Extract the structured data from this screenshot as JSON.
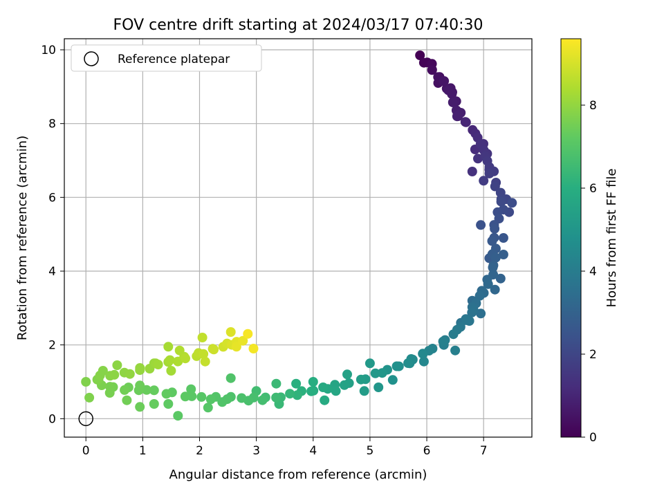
{
  "chart_data": {
    "type": "scatter",
    "title": "FOV centre drift starting at 2024/03/17 07:40:30",
    "xlabel": "Angular distance from reference (arcmin)",
    "ylabel": "Rotation from reference (arcmin)",
    "xlim": [
      -0.38,
      7.85
    ],
    "ylim": [
      -0.5,
      10.3
    ],
    "xticks": [
      0,
      1,
      2,
      3,
      4,
      5,
      6,
      7
    ],
    "yticks": [
      0,
      2,
      4,
      6,
      8,
      10
    ],
    "grid": true,
    "legend": {
      "placement": "top-left",
      "entries": [
        "Reference platepar"
      ]
    },
    "reference_point": {
      "x": 0,
      "y": 0
    },
    "colorbar": {
      "label": "Hours from first FF file",
      "range": [
        0,
        9.6
      ],
      "ticks": [
        0,
        2,
        4,
        6,
        8
      ],
      "colormap": "viridis"
    },
    "path": [
      [
        5.88,
        9.8,
        0.0
      ],
      [
        6.05,
        9.6,
        0.2
      ],
      [
        6.18,
        9.3,
        0.35
      ],
      [
        6.3,
        9.2,
        0.5
      ],
      [
        6.42,
        8.9,
        0.65
      ],
      [
        6.58,
        8.15,
        0.85
      ],
      [
        6.7,
        8.0,
        1.0
      ],
      [
        6.82,
        7.75,
        1.15
      ],
      [
        6.95,
        7.5,
        1.3
      ],
      [
        7.05,
        7.2,
        1.45
      ],
      [
        7.1,
        6.95,
        1.6
      ],
      [
        7.15,
        6.6,
        1.75
      ],
      [
        7.22,
        6.3,
        1.9
      ],
      [
        7.28,
        6.0,
        2.05
      ],
      [
        7.3,
        5.7,
        2.2
      ],
      [
        7.25,
        5.4,
        2.35
      ],
      [
        7.22,
        5.1,
        2.5
      ],
      [
        7.2,
        4.8,
        2.65
      ],
      [
        7.18,
        4.5,
        2.8
      ],
      [
        7.15,
        4.2,
        2.95
      ],
      [
        7.12,
        3.9,
        3.1
      ],
      [
        7.05,
        3.6,
        3.25
      ],
      [
        6.95,
        3.3,
        3.4
      ],
      [
        6.85,
        3.05,
        3.55
      ],
      [
        6.72,
        2.75,
        3.7
      ],
      [
        6.58,
        2.5,
        3.85
      ],
      [
        6.42,
        2.25,
        4.0
      ],
      [
        6.25,
        2.05,
        4.15
      ],
      [
        6.05,
        1.85,
        4.3
      ],
      [
        5.8,
        1.65,
        4.5
      ],
      [
        5.55,
        1.45,
        4.7
      ],
      [
        5.3,
        1.3,
        4.9
      ],
      [
        5.05,
        1.18,
        5.1
      ],
      [
        4.8,
        1.05,
        5.3
      ],
      [
        4.55,
        0.95,
        5.5
      ],
      [
        4.3,
        0.85,
        5.7
      ],
      [
        4.05,
        0.75,
        5.9
      ],
      [
        3.8,
        0.7,
        6.1
      ],
      [
        3.55,
        0.65,
        6.3
      ],
      [
        3.3,
        0.6,
        6.5
      ],
      [
        3.1,
        0.55,
        6.65
      ],
      [
        2.9,
        0.5,
        6.75
      ],
      [
        2.6,
        0.55,
        6.85
      ],
      [
        2.3,
        0.55,
        6.95
      ],
      [
        2.0,
        0.6,
        7.05
      ],
      [
        1.7,
        0.65,
        7.15
      ],
      [
        1.4,
        0.7,
        7.25
      ],
      [
        1.1,
        0.75,
        7.35
      ],
      [
        0.8,
        0.8,
        7.45
      ],
      [
        0.5,
        0.85,
        7.55
      ],
      [
        0.25,
        0.95,
        7.65
      ],
      [
        0.15,
        1.1,
        7.75
      ],
      [
        0.4,
        1.15,
        7.85
      ],
      [
        0.7,
        1.2,
        7.95
      ],
      [
        1.0,
        1.35,
        8.05
      ],
      [
        1.3,
        1.5,
        8.2
      ],
      [
        1.6,
        1.6,
        8.4
      ],
      [
        1.9,
        1.7,
        8.6
      ],
      [
        2.2,
        1.85,
        8.8
      ],
      [
        2.5,
        2.0,
        9.0
      ],
      [
        2.7,
        2.1,
        9.2
      ],
      [
        2.8,
        2.15,
        9.4
      ]
    ],
    "outliers": [
      [
        5.95,
        9.65,
        0.1
      ],
      [
        6.2,
        9.1,
        0.4
      ],
      [
        6.35,
        8.95,
        0.55
      ],
      [
        6.45,
        8.85,
        0.6
      ],
      [
        6.55,
        8.2,
        0.8
      ],
      [
        6.85,
        7.3,
        1.2
      ],
      [
        6.8,
        6.7,
        1.35
      ],
      [
        6.9,
        7.05,
        1.4
      ],
      [
        7.1,
        6.75,
        1.55
      ],
      [
        7.0,
        6.45,
        1.7
      ],
      [
        7.4,
        5.95,
        2.0
      ],
      [
        7.45,
        5.6,
        2.15
      ],
      [
        7.5,
        5.85,
        2.25
      ],
      [
        6.95,
        5.25,
        2.4
      ],
      [
        7.35,
        4.9,
        2.55
      ],
      [
        7.1,
        4.35,
        2.7
      ],
      [
        7.35,
        4.45,
        2.9
      ],
      [
        7.3,
        3.8,
        3.05
      ],
      [
        7.2,
        3.5,
        3.2
      ],
      [
        6.8,
        3.2,
        3.35
      ],
      [
        6.95,
        2.85,
        3.5
      ],
      [
        6.6,
        2.6,
        3.65
      ],
      [
        6.75,
        2.65,
        3.75
      ],
      [
        6.3,
        2.0,
        4.05
      ],
      [
        6.5,
        1.85,
        4.1
      ],
      [
        5.95,
        1.55,
        4.4
      ],
      [
        5.7,
        1.5,
        4.55
      ],
      [
        5.4,
        1.05,
        4.8
      ],
      [
        5.15,
        0.85,
        5.0
      ],
      [
        5.0,
        1.5,
        5.15
      ],
      [
        4.9,
        0.75,
        5.25
      ],
      [
        4.6,
        1.2,
        5.45
      ],
      [
        4.4,
        0.75,
        5.65
      ],
      [
        4.2,
        0.5,
        5.85
      ],
      [
        4.0,
        1.0,
        5.95
      ],
      [
        3.7,
        0.95,
        6.05
      ],
      [
        3.4,
        0.4,
        6.4
      ],
      [
        3.35,
        0.95,
        6.45
      ],
      [
        3.0,
        0.75,
        6.6
      ],
      [
        2.55,
        1.1,
        6.9
      ],
      [
        2.4,
        0.45,
        6.92
      ],
      [
        2.15,
        0.3,
        7.0
      ],
      [
        1.85,
        0.8,
        7.1
      ],
      [
        1.62,
        0.08,
        7.12
      ],
      [
        1.45,
        0.4,
        7.2
      ],
      [
        1.2,
        0.4,
        7.3
      ],
      [
        0.95,
        0.32,
        7.4
      ],
      [
        0.72,
        0.5,
        7.5
      ],
      [
        0.95,
        0.9,
        7.42
      ],
      [
        0.42,
        0.7,
        7.6
      ],
      [
        0.06,
        0.57,
        7.7
      ],
      [
        0.0,
        1.0,
        7.72
      ],
      [
        0.3,
        1.3,
        7.8
      ],
      [
        0.55,
        1.45,
        7.9
      ],
      [
        1.2,
        1.5,
        8.1
      ],
      [
        1.45,
        1.95,
        8.3
      ],
      [
        1.5,
        1.3,
        8.25
      ],
      [
        1.65,
        1.85,
        8.45
      ],
      [
        2.05,
        2.2,
        8.7
      ],
      [
        2.1,
        1.55,
        8.75
      ],
      [
        2.55,
        2.35,
        9.1
      ],
      [
        2.65,
        1.95,
        9.25
      ],
      [
        2.95,
        1.9,
        9.45
      ],
      [
        2.85,
        2.3,
        9.5
      ]
    ]
  }
}
